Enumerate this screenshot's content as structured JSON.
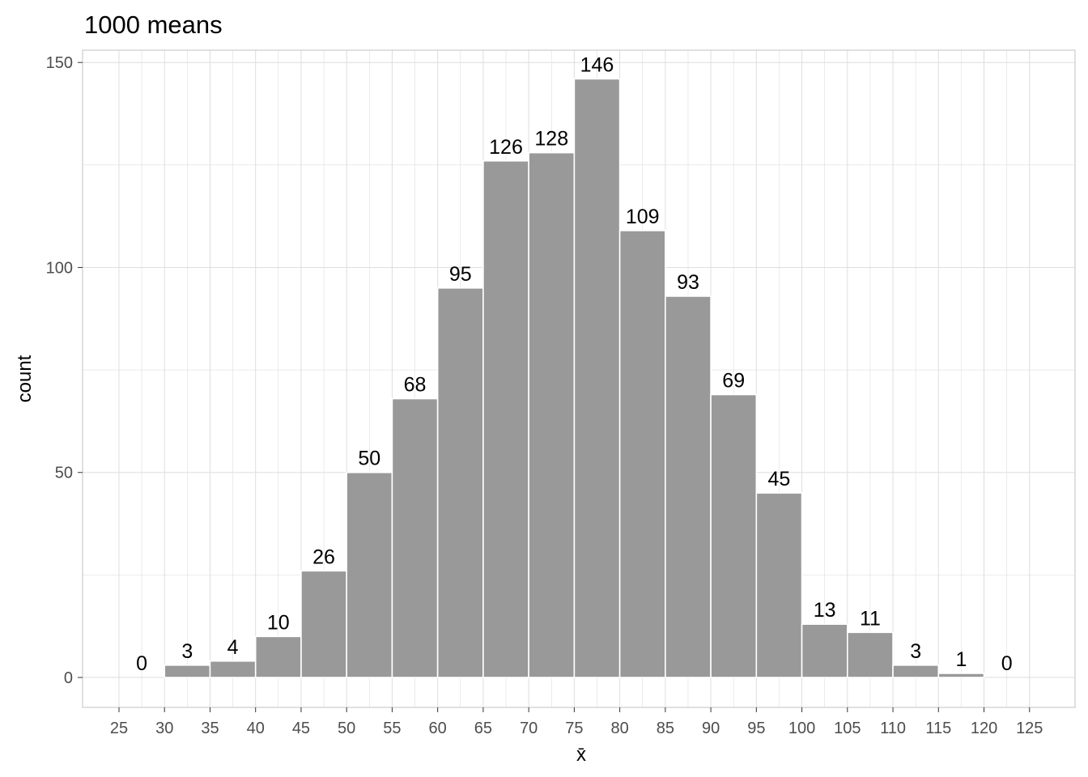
{
  "chart_data": {
    "type": "bar",
    "title": "1000 means",
    "xlabel": "x̄",
    "ylabel": "count",
    "bin_width": 5,
    "bins": [
      {
        "start": 25,
        "end": 30,
        "count": 0
      },
      {
        "start": 30,
        "end": 35,
        "count": 3
      },
      {
        "start": 35,
        "end": 40,
        "count": 4
      },
      {
        "start": 40,
        "end": 45,
        "count": 10
      },
      {
        "start": 45,
        "end": 50,
        "count": 26
      },
      {
        "start": 50,
        "end": 55,
        "count": 50
      },
      {
        "start": 55,
        "end": 60,
        "count": 68
      },
      {
        "start": 60,
        "end": 65,
        "count": 95
      },
      {
        "start": 65,
        "end": 70,
        "count": 126
      },
      {
        "start": 70,
        "end": 75,
        "count": 128
      },
      {
        "start": 75,
        "end": 80,
        "count": 146
      },
      {
        "start": 80,
        "end": 85,
        "count": 109
      },
      {
        "start": 85,
        "end": 90,
        "count": 93
      },
      {
        "start": 90,
        "end": 95,
        "count": 69
      },
      {
        "start": 95,
        "end": 100,
        "count": 45
      },
      {
        "start": 100,
        "end": 105,
        "count": 13
      },
      {
        "start": 105,
        "end": 110,
        "count": 11
      },
      {
        "start": 110,
        "end": 115,
        "count": 3
      },
      {
        "start": 115,
        "end": 120,
        "count": 1
      },
      {
        "start": 120,
        "end": 125,
        "count": 0
      }
    ],
    "x_ticks": [
      "25",
      "30",
      "35",
      "40",
      "45",
      "50",
      "55",
      "60",
      "65",
      "70",
      "75",
      "80",
      "85",
      "90",
      "95",
      "100",
      "105",
      "110",
      "115",
      "120",
      "125"
    ],
    "y_ticks": [
      "0",
      "50",
      "100",
      "150"
    ],
    "xlim": [
      21,
      130
    ],
    "ylim": [
      -7.3,
      153
    ],
    "grid": true,
    "colors": {
      "bar_fill": "#999999",
      "bar_stroke": "#ffffff",
      "grid": "#dedede",
      "panel_border": "#cccccc",
      "tick_text": "#4d4d4d"
    }
  }
}
